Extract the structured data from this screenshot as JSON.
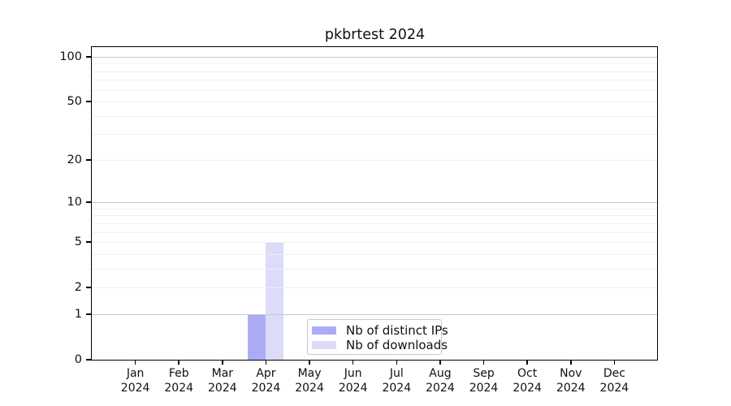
{
  "title": "pkbrtest 2024",
  "chart_data": {
    "type": "bar",
    "title": "pkbrtest 2024",
    "categories": [
      "Jan",
      "Feb",
      "Mar",
      "Apr",
      "May",
      "Jun",
      "Jul",
      "Aug",
      "Sep",
      "Oct",
      "Nov",
      "Dec"
    ],
    "year_label": "2024",
    "series": [
      {
        "name": "Nb of distinct IPs",
        "color": "#acacf6",
        "values": [
          0,
          0,
          0,
          1,
          0,
          0,
          0,
          0,
          0,
          0,
          0,
          0
        ]
      },
      {
        "name": "Nb of downloads",
        "color": "#dcdcf9",
        "values": [
          0,
          0,
          0,
          5,
          0,
          0,
          0,
          0,
          0,
          0,
          0,
          0
        ]
      }
    ],
    "y_ticks": [
      0,
      1,
      2,
      5,
      10,
      20,
      50,
      100
    ],
    "y_major_gridlines": [
      1,
      10,
      100
    ],
    "y_minor_gridlines": [
      2,
      3,
      4,
      5,
      6,
      7,
      8,
      9,
      20,
      30,
      40,
      50,
      60,
      70,
      80,
      90
    ],
    "y_scale": "log10(1+x)",
    "ylim": [
      0,
      116
    ],
    "xlabel": "",
    "ylabel": "",
    "grid": true,
    "legend_position": "bottom-center-inside"
  }
}
